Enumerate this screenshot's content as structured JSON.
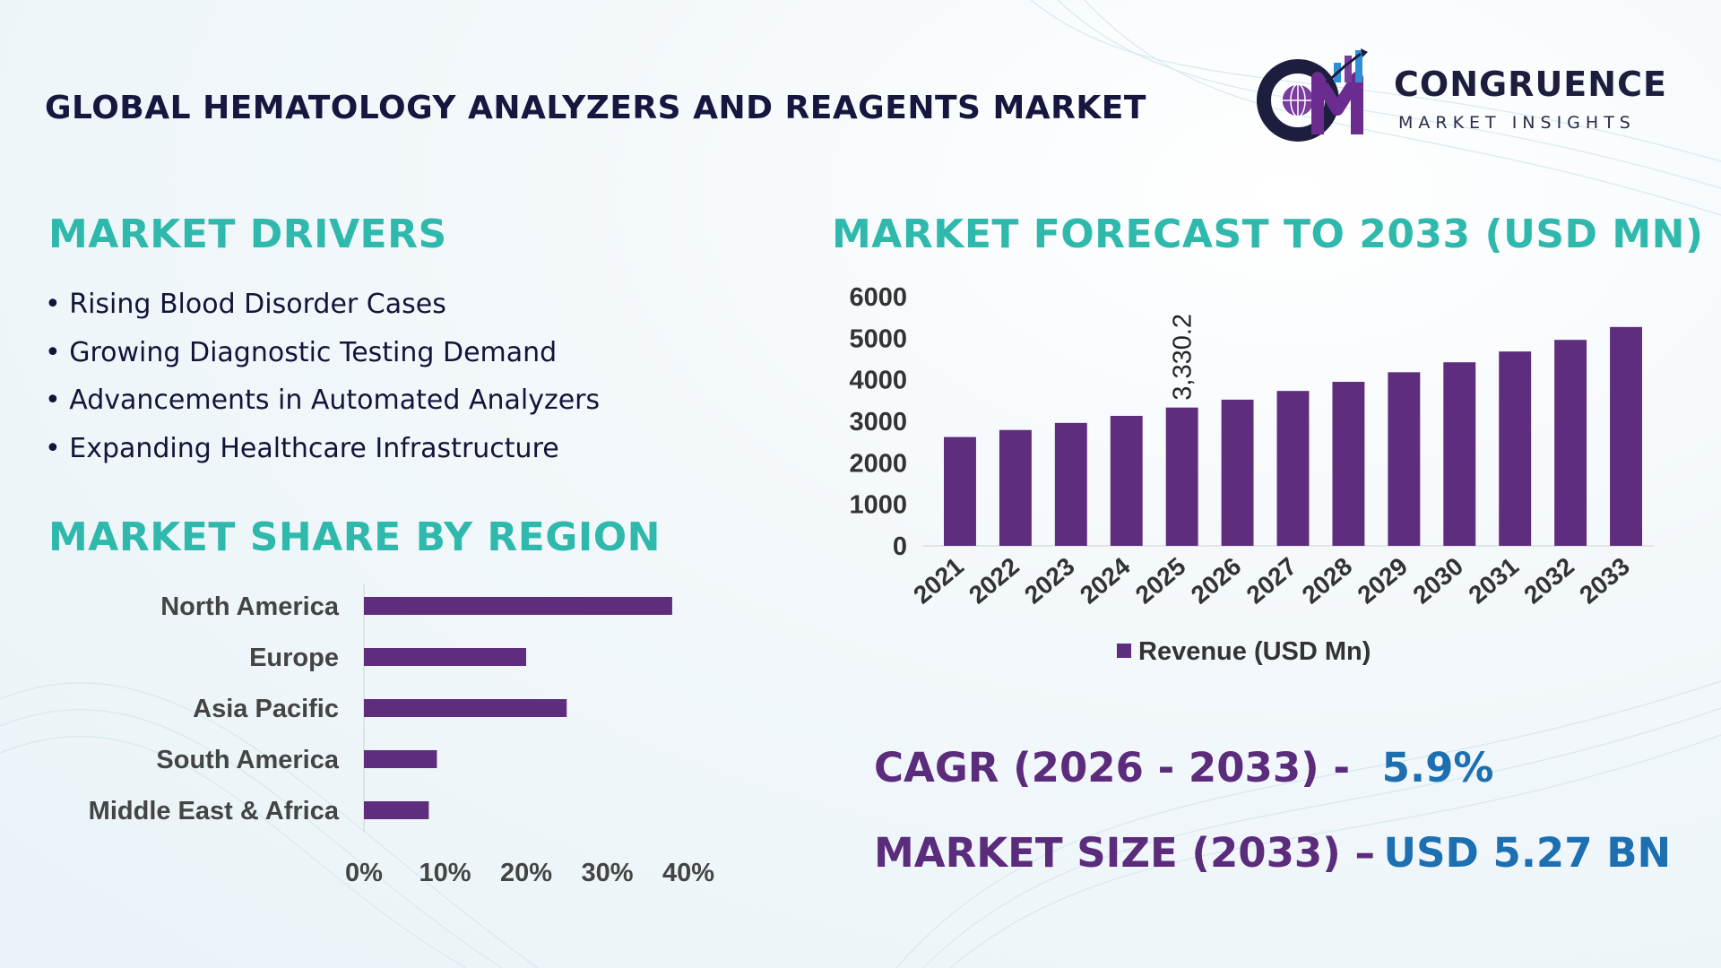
{
  "title": "GLOBAL HEMATOLOGY ANALYZERS AND REAGENTS MARKET",
  "logo": {
    "name": "CONGRUENCE",
    "subtitle": "MARKET INSIGHTS",
    "mark": "CM"
  },
  "drivers": {
    "heading": "MARKET DRIVERS",
    "items": [
      "Rising Blood Disorder Cases",
      "Growing Diagnostic Testing Demand",
      "Advancements in Automated Analyzers",
      "Expanding Healthcare Infrastructure"
    ]
  },
  "stats": {
    "cagr_label": "CAGR (2026 - 2033) -",
    "cagr_value": "5.9%",
    "size_label": "MARKET SIZE (2033) –",
    "size_value": "USD 5.27 BN"
  },
  "colors": {
    "bar": "#5e2d7e",
    "heading": "#2fb9ad",
    "stat_label": "#5b2b7c",
    "stat_value": "#1c6fb0"
  },
  "chart_data": [
    {
      "type": "bar",
      "orientation": "vertical",
      "title": "MARKET FORECAST TO 2033 (USD MN)",
      "categories": [
        "2021",
        "2022",
        "2023",
        "2024",
        "2025",
        "2026",
        "2027",
        "2028",
        "2029",
        "2030",
        "2031",
        "2032",
        "2033"
      ],
      "series": [
        {
          "name": "Revenue (USD Mn)",
          "values": [
            2620,
            2790,
            2960,
            3130,
            3330.2,
            3520,
            3730,
            3950,
            4180,
            4420,
            4680,
            4960,
            5270
          ]
        }
      ],
      "data_labels": [
        {
          "category": "2025",
          "text": "3,330.2"
        }
      ],
      "yticks": [
        "0",
        "1000",
        "2000",
        "3000",
        "4000",
        "5000",
        "6000"
      ],
      "ylim": [
        0,
        6000
      ],
      "grid": false,
      "legend": "bottom"
    },
    {
      "type": "bar",
      "orientation": "horizontal",
      "title": "MARKET SHARE BY REGION",
      "categories": [
        "North America",
        "Europe",
        "Asia Pacific",
        "South America",
        "Middle East & Africa"
      ],
      "values": [
        38,
        20,
        25,
        9,
        8
      ],
      "xticks": [
        "0%",
        "10%",
        "20%",
        "30%",
        "40%"
      ],
      "xlim": [
        0,
        40
      ],
      "grid": false
    }
  ]
}
